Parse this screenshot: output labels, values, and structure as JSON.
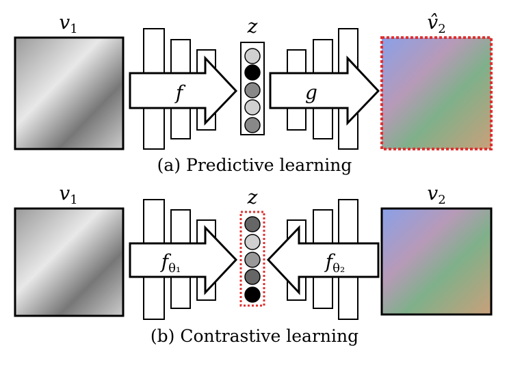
{
  "panel_a": {
    "input_label": {
      "main": "v",
      "sub": "1"
    },
    "encoder_label": "f",
    "latent_label": "z",
    "decoder_label": "g",
    "output_label": {
      "main": "v̂",
      "sub": "2"
    },
    "caption": "(a) Predictive learning"
  },
  "panel_b": {
    "input_label": {
      "main": "v",
      "sub": "1"
    },
    "encoder1_label": {
      "main": "f",
      "sub": "θ₁"
    },
    "latent_label": "z",
    "encoder2_label": {
      "main": "f",
      "sub": "θ₂"
    },
    "output_label": {
      "main": "v",
      "sub": "2"
    },
    "caption": "(b) Contrastive learning"
  }
}
